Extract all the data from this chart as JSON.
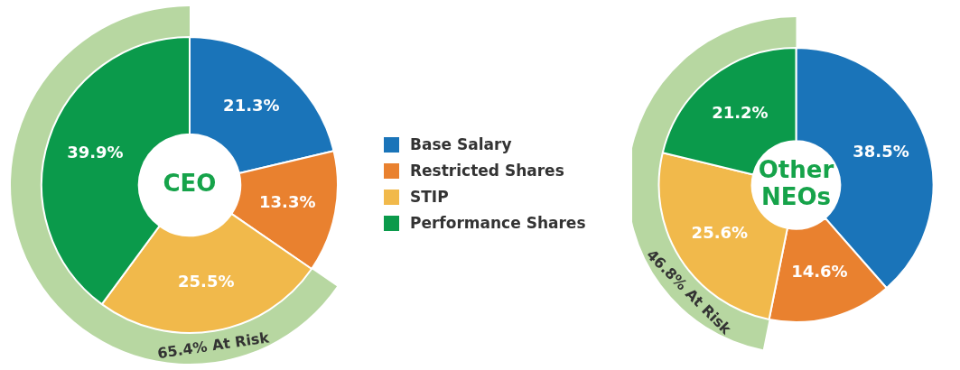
{
  "chart_data": [
    {
      "type": "donut",
      "title": "CEO",
      "legend": "right",
      "categories": [
        "Base Salary",
        "Restricted Shares",
        "STIP",
        "Performance Shares"
      ],
      "annotations": [
        "65.4% At Risk"
      ],
      "values": [
        21.3,
        13.3,
        25.5,
        39.9
      ],
      "colors": [
        "#1a74b9",
        "#e9812f",
        "#f1b94b",
        "#0b9a4b"
      ],
      "value_labels": [
        "21.3%",
        "13.3%",
        "25.5%",
        "39.9%"
      ]
    },
    {
      "type": "donut",
      "title": "Other NEOs",
      "categories": [
        null,
        null,
        null,
        null
      ],
      "annotations": [
        "46.8% At Risk"
      ],
      "values": [
        38.5,
        14.6,
        25.6,
        21.2
      ],
      "colors": [
        "#1a74b9",
        "#e9812f",
        "#f1b94b",
        "#0b9a4b"
      ],
      "value_labels": [
        "38.5%",
        "14.6%",
        "25.6%",
        "21.2%"
      ]
    }
  ]
}
